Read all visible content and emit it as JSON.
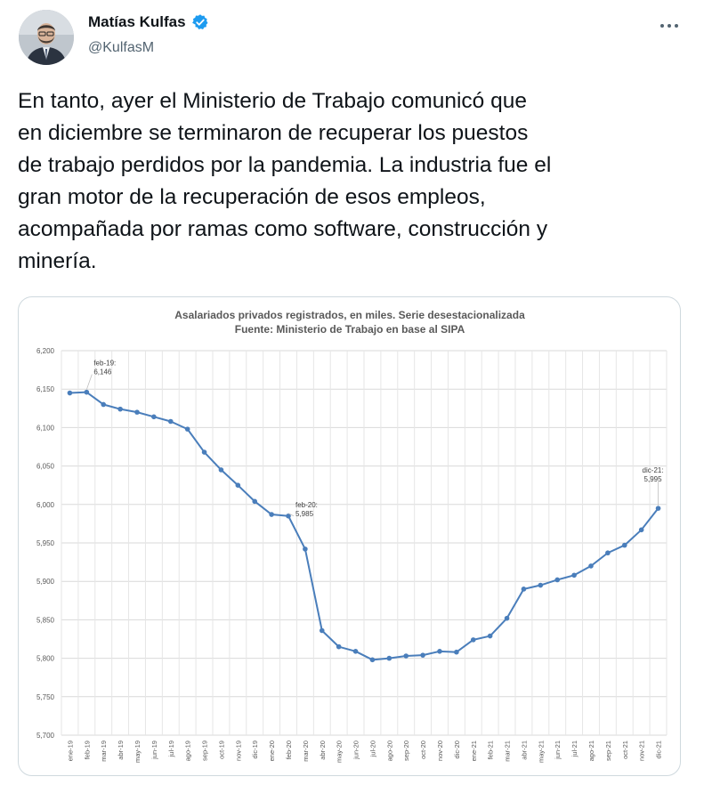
{
  "author": {
    "name": "Matías Kulfas",
    "handle": "@KulfasM",
    "verified": true,
    "avatar_icon": "person-avatar",
    "more_icon": "more-horizontal-icon"
  },
  "tweet": {
    "text": "En tanto, ayer el Ministerio de Trabajo comunicó que\nen diciembre se terminaron de recuperar los puestos\nde trabajo perdidos por la pandemia. La industria fue el\ngran motor de la recuperación de esos empleos,\nacompañada por ramas como software, construcción y\nminería."
  },
  "colors": {
    "accent": "#1d9bf0",
    "series": "#4a7ebb",
    "muted": "#536471"
  },
  "chart_data": {
    "type": "line",
    "title": "Asalariados privados registrados, en miles. Serie desestacionalizada",
    "subtitle": "Fuente: Ministerio de Trabajo en base al SIPA",
    "xlabel": "",
    "ylabel": "",
    "ylim": [
      5700,
      6200
    ],
    "yticks": [
      "6,200",
      "6,150",
      "6,100",
      "6,050",
      "6,000",
      "5,950",
      "5,900",
      "5,850",
      "5,800",
      "5,750",
      "5,700"
    ],
    "ytick_values": [
      6200,
      6150,
      6100,
      6050,
      6000,
      5950,
      5900,
      5850,
      5800,
      5750,
      5700
    ],
    "grid": true,
    "categories": [
      "ene-19",
      "feb-19",
      "mar-19",
      "abr-19",
      "may-19",
      "jun-19",
      "jul-19",
      "ago-19",
      "sep-19",
      "oct-19",
      "nov-19",
      "dic-19",
      "ene-20",
      "feb-20",
      "mar-20",
      "abr-20",
      "may-20",
      "jun-20",
      "jul-20",
      "ago-20",
      "sep-20",
      "oct-20",
      "nov-20",
      "dic-20",
      "ene-21",
      "feb-21",
      "mar-21",
      "abr-21",
      "may-21",
      "jun-21",
      "jul-21",
      "ago-21",
      "sep-21",
      "oct-21",
      "nov-21",
      "dic-21"
    ],
    "series": [
      {
        "values": [
          6145,
          6146,
          6130,
          6124,
          6120,
          6114,
          6108,
          6098,
          6068,
          6045,
          6025,
          6004,
          5987,
          5985,
          5942,
          5836,
          5815,
          5809,
          5798,
          5800,
          5803,
          5804,
          5809,
          5808,
          5824,
          5829,
          5852,
          5890,
          5895,
          5902,
          5908,
          5920,
          5937,
          5947,
          5967,
          5995
        ]
      }
    ],
    "annotations": [
      {
        "label": "feb-19:",
        "value_label": "6,146",
        "index": 1
      },
      {
        "label": "feb-20:",
        "value_label": "5,985",
        "index": 13
      },
      {
        "label": "dic-21:",
        "value_label": "5,995",
        "index": 35
      }
    ]
  }
}
